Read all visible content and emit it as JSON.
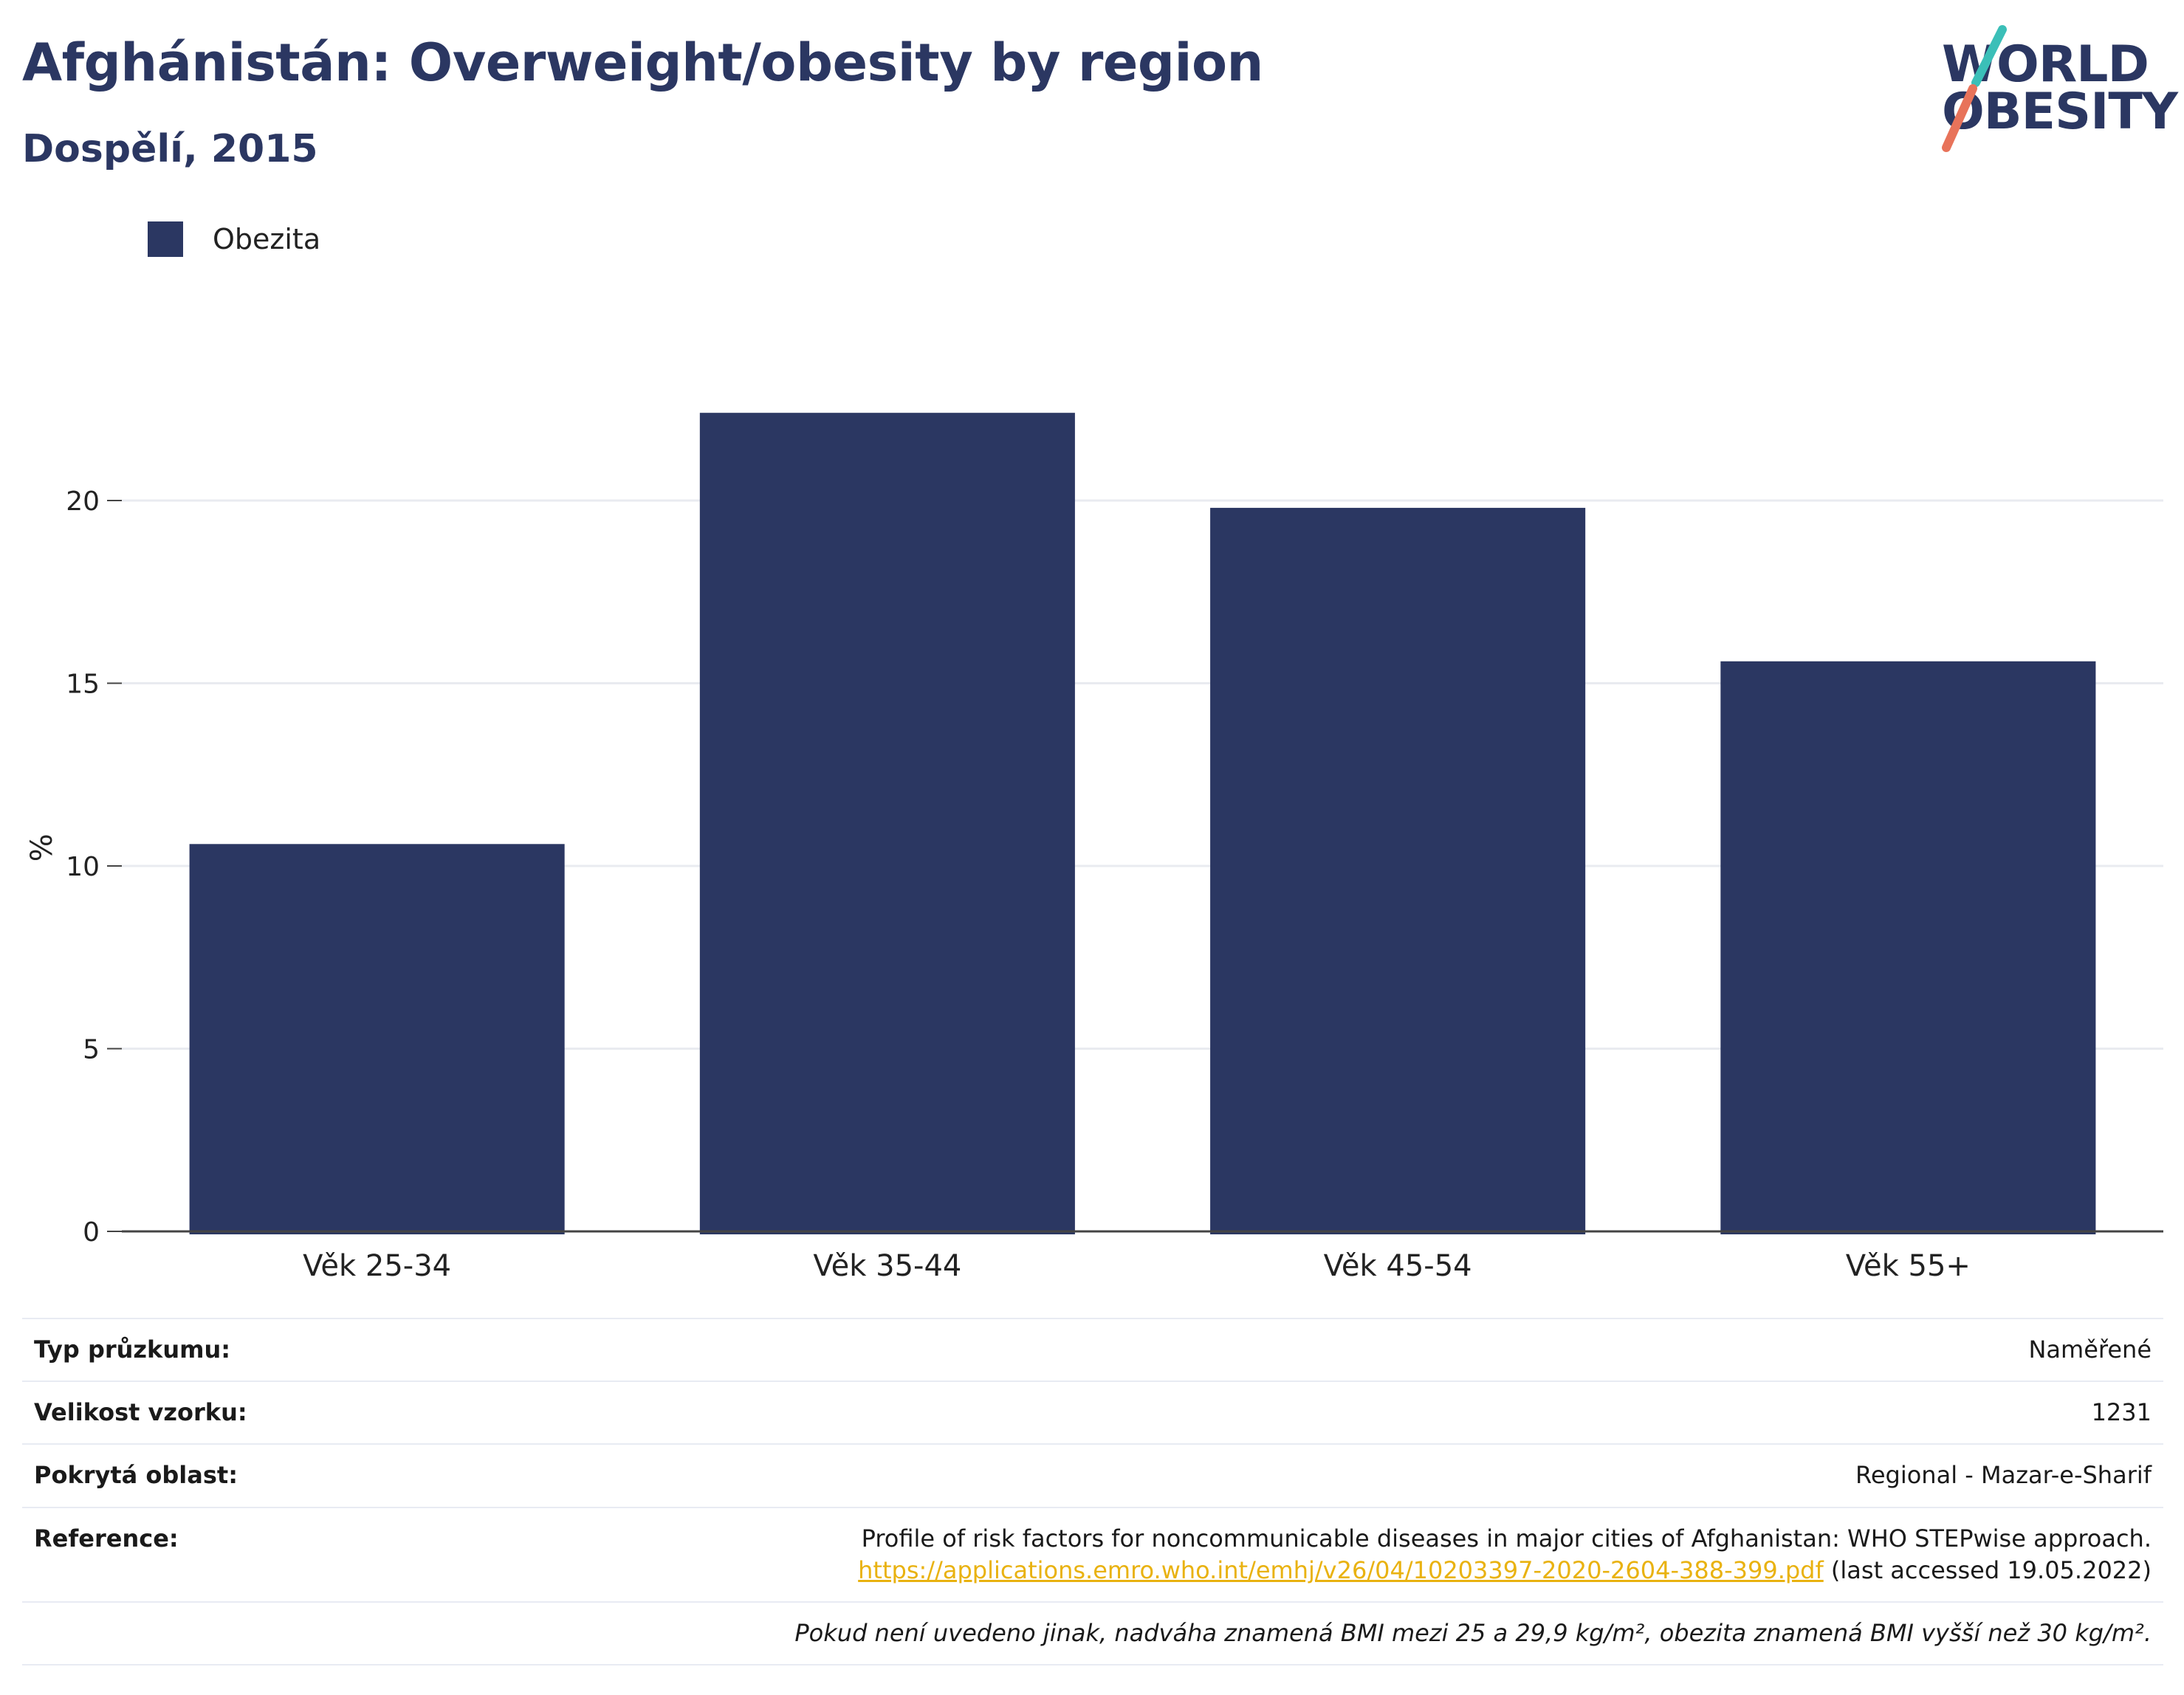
{
  "header": {
    "title": "Afghánistán: Overweight/obesity by region",
    "subtitle": "Dospělí, 2015"
  },
  "logo": {
    "line1": "WORLD",
    "line2": "OBESITY",
    "colors": {
      "text": "#2b3762",
      "slash_teal": "#3bbfb8",
      "slash_coral": "#e8735a"
    }
  },
  "legend": {
    "label": "Obezita",
    "color": "#2b3762"
  },
  "chart_data": {
    "type": "bar",
    "categories": [
      "Věk 25-34",
      "Věk 35-44",
      "Věk 45-54",
      "Věk 55+"
    ],
    "series": [
      {
        "name": "Obezita",
        "values": [
          10.6,
          22.4,
          19.8,
          15.6
        ],
        "color": "#2b3762"
      }
    ],
    "ylabel": "%",
    "ylim": [
      0,
      24
    ],
    "yticks": [
      0,
      5,
      10,
      15,
      20
    ],
    "grid": true,
    "legend_position": "top-left"
  },
  "info": {
    "survey_type_label": "Typ průzkumu:",
    "survey_type_value": "Naměřené",
    "sample_size_label": "Velikost vzorku:",
    "sample_size_value": "1231",
    "area_label": "Pokrytá oblast:",
    "area_value": "Regional - Mazar-e-Sharif",
    "reference_label": "Reference:",
    "reference_text": "Profile of risk factors for noncommunicable diseases in major cities of Afghanistan: WHO STEPwise approach.",
    "reference_url": "https://applications.emro.who.int/emhj/v26/04/10203397-2020-2604-388-399.pdf",
    "reference_accessed": "(last accessed 19.05.2022)",
    "note": "Pokud není uvedeno jinak, nadváha znamená BMI mezi 25 a 29,9 kg/m², obezita znamená BMI vyšší než 30 kg/m²."
  }
}
